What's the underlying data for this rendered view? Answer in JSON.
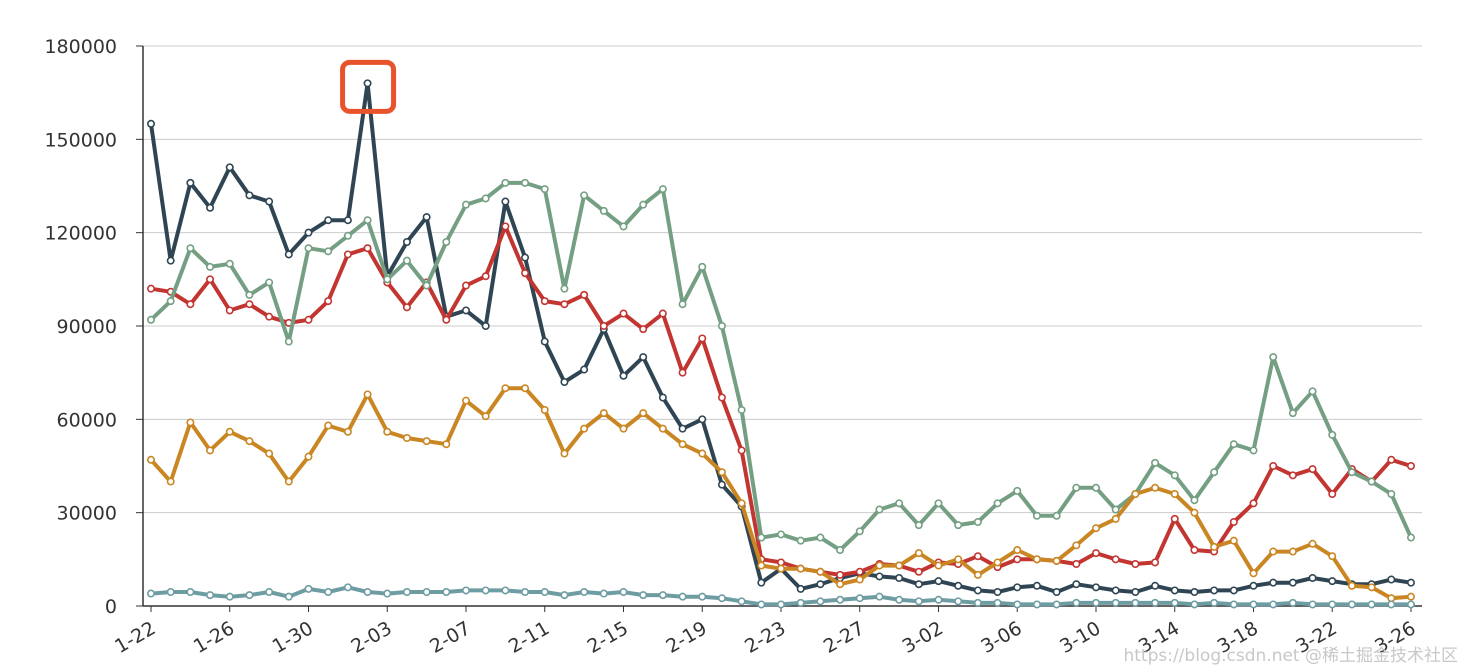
{
  "chart_data": {
    "type": "line",
    "title": "",
    "xlabel": "",
    "ylabel": "",
    "ylim": [
      0,
      180000
    ],
    "y_ticks": [
      "0",
      "30000",
      "60000",
      "90000",
      "120000",
      "150000",
      "180000"
    ],
    "y_tick_values": [
      0,
      30000,
      60000,
      90000,
      120000,
      150000,
      180000
    ],
    "x_tick_labels": [
      "1-22",
      "1-26",
      "1-30",
      "2-03",
      "2-07",
      "2-11",
      "2-15",
      "2-19",
      "2-23",
      "2-27",
      "3-02",
      "3-06",
      "3-10",
      "3-14",
      "3-18",
      "3-22",
      "3-26"
    ],
    "grid": "horizontal",
    "legend": "none",
    "categories": [
      "1-22",
      "1-23",
      "1-24",
      "1-25",
      "1-26",
      "1-27",
      "1-28",
      "1-29",
      "1-30",
      "1-31",
      "2-01",
      "2-02",
      "2-03",
      "2-04",
      "2-05",
      "2-06",
      "2-07",
      "2-08",
      "2-09",
      "2-10",
      "2-11",
      "2-12",
      "2-13",
      "2-14",
      "2-15",
      "2-16",
      "2-17",
      "2-18",
      "2-19",
      "2-20",
      "2-21",
      "2-22",
      "2-23",
      "2-24",
      "2-25",
      "2-26",
      "2-27",
      "2-28",
      "2-29",
      "3-01",
      "3-02",
      "3-03",
      "3-04",
      "3-05",
      "3-06",
      "3-07",
      "3-08",
      "3-09",
      "3-10",
      "3-11",
      "3-12",
      "3-13",
      "3-14",
      "3-15",
      "3-16",
      "3-17",
      "3-18",
      "3-19",
      "3-20",
      "3-21",
      "3-22",
      "3-23",
      "3-24",
      "3-25",
      "3-26"
    ],
    "series": [
      {
        "color": "#2f4554",
        "values": [
          155000,
          111000,
          136000,
          128000,
          141000,
          132000,
          130000,
          113000,
          120000,
          124000,
          124000,
          168000,
          106000,
          117000,
          125000,
          93000,
          95000,
          90000,
          130000,
          112000,
          85000,
          72000,
          76000,
          89000,
          74000,
          80000,
          67000,
          57000,
          60000,
          39000,
          32000,
          7500,
          12000,
          5500,
          7000,
          9000,
          10500,
          9500,
          9000,
          7000,
          8000,
          6500,
          5000,
          4500,
          6000,
          6500,
          4500,
          7000,
          6000,
          5000,
          4500,
          6500,
          5000,
          4500,
          5000,
          5000,
          6500,
          7500,
          7500,
          9000,
          8000,
          7000,
          7000,
          8500,
          7500
        ]
      },
      {
        "color": "#c23531",
        "values": [
          102000,
          101000,
          97000,
          105000,
          95000,
          97000,
          93000,
          91000,
          92000,
          98000,
          113000,
          115000,
          104000,
          96000,
          104000,
          92000,
          103000,
          106000,
          122000,
          107000,
          98000,
          97000,
          100000,
          90000,
          94000,
          89000,
          94000,
          75000,
          86000,
          67000,
          50000,
          15000,
          14000,
          12000,
          11000,
          10000,
          11000,
          13500,
          13000,
          11000,
          14000,
          13500,
          16000,
          12500,
          15000,
          15000,
          14500,
          13500,
          17000,
          15000,
          13500,
          14000,
          28000,
          18000,
          17500,
          27000,
          33000,
          45000,
          42000,
          44000,
          36000,
          44000,
          40000,
          47000,
          45000
        ]
      },
      {
        "color": "#749f83",
        "values": [
          92000,
          98000,
          115000,
          109000,
          110000,
          100000,
          104000,
          85000,
          115000,
          114000,
          119000,
          124000,
          105000,
          111000,
          103000,
          117000,
          129000,
          131000,
          136000,
          136000,
          134000,
          102000,
          132000,
          127000,
          122000,
          129000,
          134000,
          97000,
          109000,
          90000,
          63000,
          22000,
          23000,
          21000,
          22000,
          18000,
          24000,
          31000,
          33000,
          26000,
          33000,
          26000,
          27000,
          33000,
          37000,
          29000,
          29000,
          38000,
          38000,
          31000,
          36000,
          46000,
          42000,
          34000,
          43000,
          52000,
          50000,
          80000,
          62000,
          69000,
          55000,
          43000,
          40000,
          36000,
          22000
        ]
      },
      {
        "color": "#ca8622",
        "values": [
          47000,
          40000,
          59000,
          50000,
          56000,
          53000,
          49000,
          40000,
          48000,
          58000,
          56000,
          68000,
          56000,
          54000,
          53000,
          52000,
          66000,
          61000,
          70000,
          70000,
          63000,
          49000,
          57000,
          62000,
          57000,
          62000,
          57000,
          52000,
          49000,
          43000,
          33000,
          13000,
          12000,
          12000,
          11000,
          7000,
          8500,
          13000,
          13000,
          17000,
          13000,
          15000,
          10000,
          14000,
          18000,
          15000,
          14500,
          19500,
          25000,
          28000,
          36000,
          38000,
          36000,
          30000,
          19000,
          21000,
          10500,
          17500,
          17500,
          20000,
          16000,
          6500,
          6000,
          2500,
          3000
        ]
      },
      {
        "color": "#6e9ca3",
        "values": [
          4000,
          4500,
          4500,
          3500,
          3000,
          3500,
          4500,
          3000,
          5500,
          4500,
          6000,
          4500,
          4000,
          4500,
          4500,
          4500,
          5000,
          5000,
          5000,
          4500,
          4500,
          3500,
          4500,
          4000,
          4500,
          3500,
          3500,
          3000,
          3000,
          2500,
          1500,
          500,
          500,
          1000,
          1500,
          2000,
          2500,
          3000,
          2000,
          1500,
          2000,
          1500,
          1000,
          1000,
          500,
          500,
          500,
          1000,
          1000,
          1000,
          1000,
          1000,
          1000,
          500,
          1000,
          500,
          500,
          500,
          1000,
          500,
          500,
          500,
          500,
          500,
          500
        ]
      }
    ],
    "annotations": [
      {
        "type": "highlight-box",
        "category": "2-02",
        "series_index": 0,
        "color": "#e8532b"
      }
    ]
  },
  "watermark": "https://blog.csdn.net @稀土掘金技术社区"
}
